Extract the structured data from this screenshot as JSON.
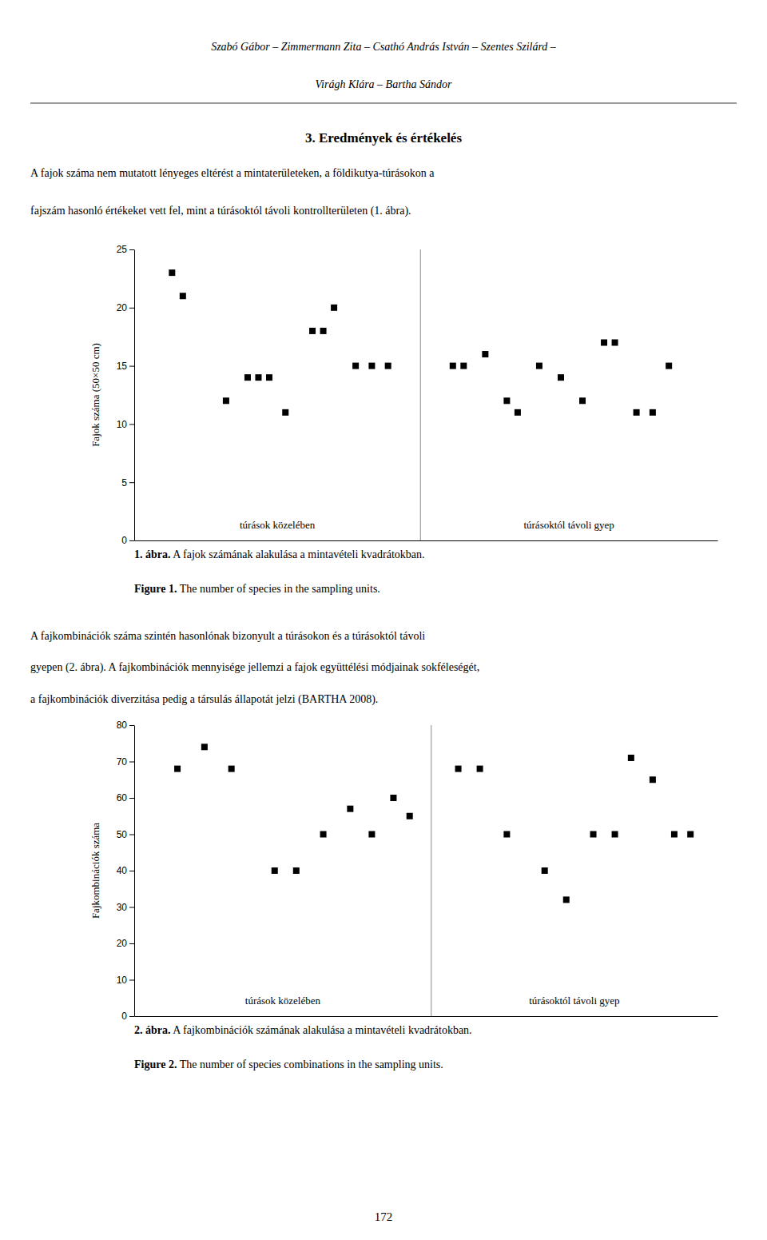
{
  "header_lines": [
    "Szabó Gábor – Zimmermann Zita – Csathó András István – Szentes Szilárd –",
    "Virágh Klára – Bartha Sándor"
  ],
  "section_title": "3. Eredmények és értékelés",
  "body_text1": [
    "    A fajok száma nem mutatott lényeges eltérést a mintaterületeken, a földikutya-túrásokon a",
    "fajszám hasonló értékeket vett fel, mint a túrásoktól távoli kontrollterületen (1. ábra)."
  ],
  "body_text2": [
    "    A fajkombinációk száma szintén hasonlónak bizonyult a túrásokon és a túrásoktól távoli",
    "gyepen (2. ábra). A fajkombinációk mennyisége jellemzi a fajok együttélési módjainak sokféleségét,",
    "a fajkombinációk diverzitása pedig a társulás állapotát jelzi (BARTHA 2008)."
  ],
  "page_number": "172",
  "chart_data": [
    {
      "type": "scatter",
      "ylabel": "Fajok száma (50×50 cm)",
      "xlim": [
        0.1,
        5.5
      ],
      "ylim": [
        0,
        25
      ],
      "yticks": [
        0,
        5,
        10,
        15,
        20,
        25
      ],
      "tick_labels": "y",
      "grid": false,
      "divider_x": 2.75,
      "annotations": [
        "túrások közelében",
        "túrásoktól távoli gyep"
      ],
      "series": [
        {
          "color": "#000000",
          "marker": "square",
          "x": [
            0.45,
            0.55,
            0.95,
            1.15,
            1.25,
            1.35,
            1.5,
            1.75,
            1.85,
            1.95,
            2.15,
            2.3,
            2.45
          ],
          "values": [
            23,
            21,
            12,
            14,
            14,
            14,
            11,
            18,
            18,
            20,
            15,
            15,
            15
          ]
        },
        {
          "color": "#000000",
          "marker": "square",
          "x": [
            3.05,
            3.15,
            3.35,
            3.55,
            3.65,
            3.85,
            4.05,
            4.25,
            4.45,
            4.55,
            4.75,
            4.9,
            5.05
          ],
          "values": [
            15,
            15,
            16,
            12,
            11,
            15,
            14,
            12,
            17,
            17,
            11,
            11,
            15
          ]
        }
      ],
      "caption": [
        {
          "bold": "1. ábra.",
          "normal": " A fajok számának alakulása a mintavételi kvadrátokban."
        },
        {
          "bold": "Figure 1.",
          "normal": " The number of species in the sampling units."
        }
      ]
    },
    {
      "type": "scatter",
      "ylabel": "Fajkombinációk száma",
      "xlim": [
        0.1,
        5.5
      ],
      "ylim": [
        0,
        80
      ],
      "yticks": [
        0,
        10,
        20,
        30,
        40,
        50,
        60,
        70,
        80
      ],
      "tick_labels": "y",
      "grid": false,
      "divider_x": 2.85,
      "annotations": [
        "túrások közelében",
        "túrásoktól távoli gyep"
      ],
      "series": [
        {
          "color": "#000000",
          "marker": "square",
          "x": [
            0.5,
            0.75,
            1.0,
            1.4,
            1.6,
            1.85,
            2.1,
            2.3,
            2.5,
            2.65
          ],
          "values": [
            68,
            74,
            68,
            40,
            40,
            50,
            57,
            50,
            60,
            55
          ]
        },
        {
          "color": "#000000",
          "marker": "square",
          "x": [
            3.1,
            3.3,
            3.55,
            3.9,
            4.1,
            4.35,
            4.55,
            4.7,
            4.9,
            5.1,
            5.25
          ],
          "values": [
            68,
            68,
            50,
            40,
            32,
            50,
            50,
            71,
            65,
            50,
            50
          ]
        }
      ],
      "caption": [
        {
          "bold": "2. ábra.",
          "normal": " A fajkombinációk számának alakulása a mintavételi kvadrátokban."
        },
        {
          "bold": "Figure 2.",
          "normal": " The number of species combinations in the sampling units."
        }
      ]
    }
  ]
}
